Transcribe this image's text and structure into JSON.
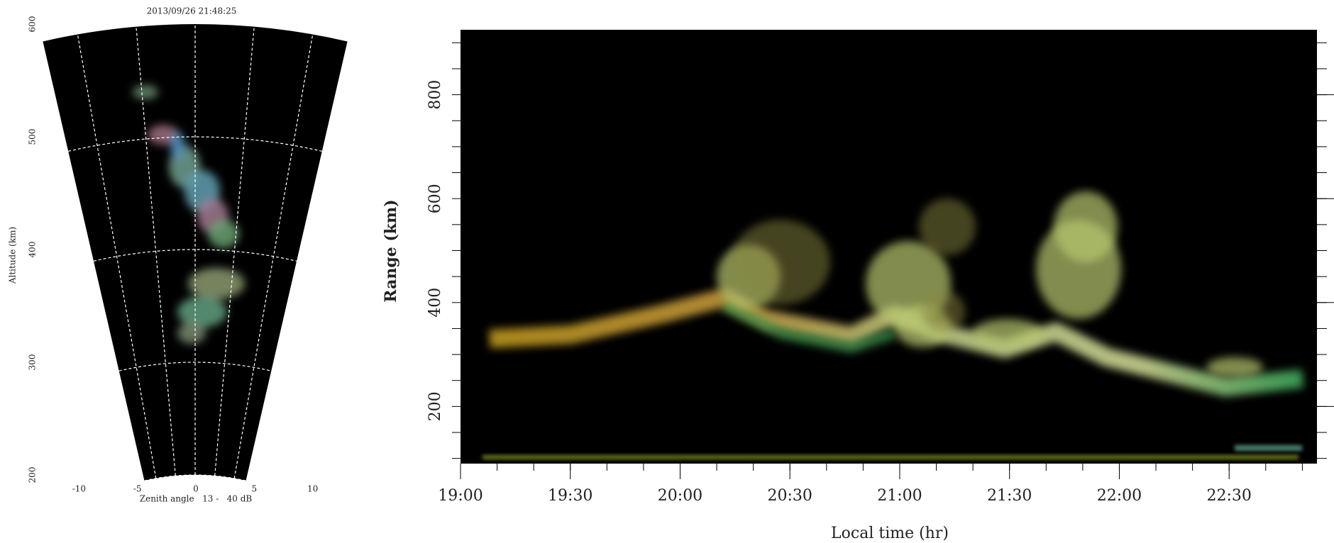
{
  "chart_data": [
    {
      "type": "fan",
      "title": "2013/09/26 21:48:25",
      "ylabel": "Altitude (km)",
      "xlabel": "Zenith angle   13 -   40 dB",
      "ylim": [
        200,
        600
      ],
      "yticks": [
        200,
        300,
        400,
        500,
        600
      ],
      "xlim": [
        -13,
        13
      ],
      "xticks": [
        -10,
        -5,
        0,
        5,
        10
      ]
    },
    {
      "type": "rti",
      "ylabel": "Range (km)",
      "xlabel": "Local time (hr)",
      "xlim": [
        19,
        22.9
      ],
      "xticks": [
        {
          "value": 19,
          "label": "19:00"
        },
        {
          "value": 19.5,
          "label": "19:30"
        },
        {
          "value": 20,
          "label": "20:00"
        },
        {
          "value": 20.5,
          "label": "20:30"
        },
        {
          "value": 21,
          "label": "21:00"
        },
        {
          "value": 21.5,
          "label": "21:30"
        },
        {
          "value": 22,
          "label": "22:00"
        },
        {
          "value": 22.5,
          "label": "22:30"
        }
      ],
      "ylim": [
        90,
        925
      ],
      "yticks": [
        200,
        400,
        600,
        800
      ]
    }
  ]
}
